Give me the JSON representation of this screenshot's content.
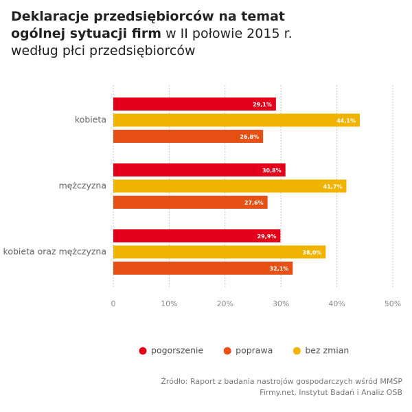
{
  "chart_data": {
    "type": "bar",
    "orientation": "horizontal",
    "title_parts": [
      "Deklaracje przedsiębiorców na temat ogólnej sytuacji firm",
      "w II połowie 2015 r. według płci przedsiębiorców"
    ],
    "categories": [
      "kobieta",
      "mężczyzna",
      "kobieta oraz mężczyzna"
    ],
    "series": [
      {
        "name": "pogorszenie",
        "color": "#e2001a",
        "values": [
          29.1,
          30.8,
          29.9
        ],
        "value_labels": [
          "29,1%",
          "30,8%",
          "29,9%"
        ]
      },
      {
        "name": "bez zmian",
        "color": "#f0b400",
        "values": [
          44.1,
          41.7,
          38.0
        ],
        "value_labels": [
          "44,1%",
          "41,7%",
          "38,0%"
        ]
      },
      {
        "name": "poprawa",
        "color": "#e65014",
        "values": [
          26.8,
          27.6,
          32.1
        ],
        "value_labels": [
          "26,8%",
          "27,6%",
          "32,1%"
        ]
      }
    ],
    "legend_order": [
      0,
      2,
      1
    ],
    "xlim": [
      0,
      50
    ],
    "xticks": [
      0,
      {
        "value": 10,
        "label": "10%"
      },
      {
        "value": 20,
        "label": "20%"
      },
      {
        "value": 30,
        "label": "30%"
      },
      {
        "value": 40,
        "label": "40%"
      },
      {
        "value": 50,
        "label": "50%"
      }
    ],
    "grid": true,
    "source": [
      "Źródło: Raport z badania nastrojów gospodarczych wśród MMŚP",
      "Firmy.net, Instytut Badań i Analiz OSB"
    ]
  }
}
